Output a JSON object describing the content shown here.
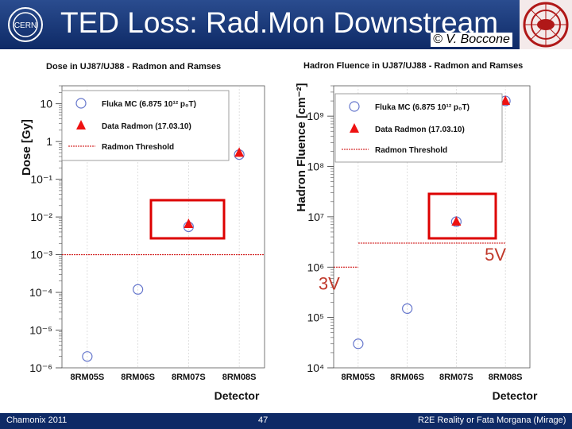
{
  "slide": {
    "title": "TED Loss: Rad.Mon Downstream",
    "credit": "© V. Boccone",
    "footer_left": "Chamonix 2011",
    "footer_center": "47",
    "footer_right": "R2E Reality or Fata Morgana (Mirage)",
    "colors": {
      "header": "#1b3a7a",
      "footer": "#0e2a66",
      "data": "#ee1111",
      "mc": "#6677cc",
      "box": "#dd0000",
      "threshold": "#cc0000",
      "annotation": "#c0392b"
    }
  },
  "chart_data": [
    {
      "type": "scatter",
      "title": "Dose in UJ87/UJ88 - Radmon and Ramses",
      "xlabel": "Detector",
      "ylabel": "Dose [Gy]",
      "log_y": true,
      "ylim": [
        1e-06,
        30
      ],
      "categories": [
        "8RM05S",
        "8RM06S",
        "8RM07S",
        "8RM08S"
      ],
      "ytick_labels": [
        "10",
        "1",
        "10⁻¹",
        "10⁻²",
        "10⁻³",
        "10⁻⁴",
        "10⁻⁵",
        "10⁻⁶"
      ],
      "ytick_values": [
        10,
        1,
        0.1,
        0.01,
        0.001,
        0.0001,
        1e-05,
        1e-06
      ],
      "series": [
        {
          "name": "Fluka MC (6.875 10¹² p₀T)",
          "marker": "circle",
          "values": [
            2e-06,
            0.00012,
            0.0055,
            0.45
          ]
        },
        {
          "name": "Data Radmon (17.03.10)",
          "marker": "triangle",
          "values": [
            null,
            null,
            0.0065,
            0.5
          ]
        }
      ],
      "threshold": {
        "name": "Radmon Threshold",
        "value": 0.001
      },
      "highlight_category": "8RM07S",
      "legend": "top-left",
      "annotations": []
    },
    {
      "type": "scatter",
      "title": "Hadron Fluence in UJ87/UJ88 - Radmon and Ramses",
      "xlabel": "Detector",
      "ylabel": "Hadron Fluence [cm⁻²]",
      "log_y": true,
      "ylim": [
        10000,
        4000000000
      ],
      "categories": [
        "8RM05S",
        "8RM06S",
        "8RM07S",
        "8RM08S"
      ],
      "ytick_labels": [
        "10⁹",
        "10⁸",
        "10⁷",
        "10⁶",
        "10⁵",
        "10⁴"
      ],
      "ytick_values": [
        1000000000,
        100000000,
        10000000,
        1000000,
        100000,
        10000
      ],
      "series": [
        {
          "name": "Fluka MC (6.875 10¹² p₀T)",
          "marker": "circle",
          "values": [
            30000,
            150000,
            8000000,
            2000000000
          ]
        },
        {
          "name": "Data Radmon (17.03.10)",
          "marker": "triangle",
          "values": [
            null,
            null,
            8000000,
            2000000000
          ]
        }
      ],
      "thresholds": [
        {
          "name": "Radmon Threshold",
          "value": 1000000,
          "label": "3V",
          "category_span": [
            0,
            0.5
          ]
        },
        {
          "name": "Radmon Threshold",
          "value": 3000000,
          "label": "5V",
          "category_span": [
            0.5,
            3.5
          ]
        }
      ],
      "highlight_category": "8RM07S",
      "legend": "top-left"
    }
  ]
}
